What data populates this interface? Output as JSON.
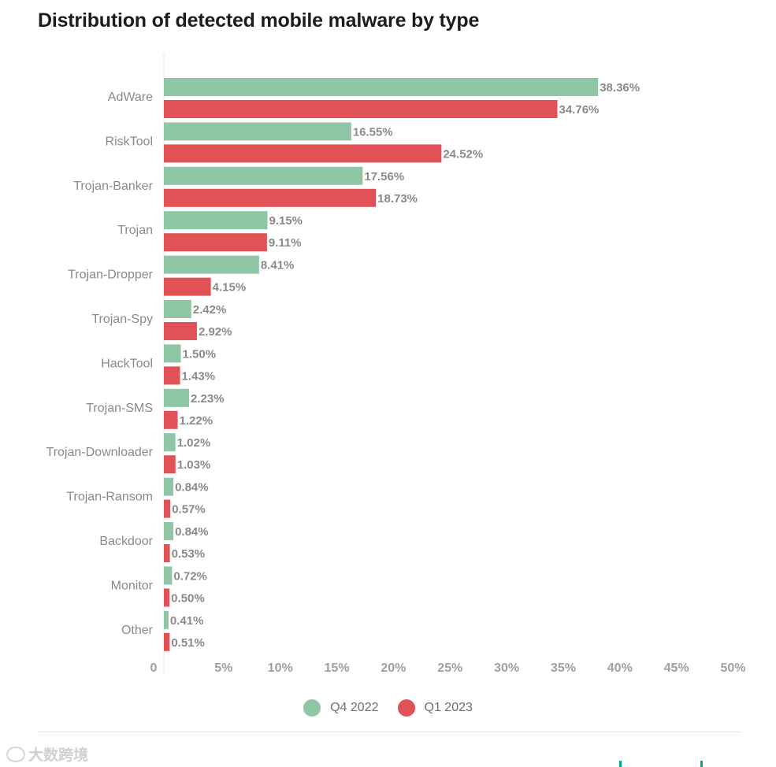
{
  "title": "Distribution of detected mobile malware by type",
  "colors": {
    "q4": "#8fc6a6",
    "q1": "#e05256",
    "label": "#8a8a8a",
    "axis": "#e3e3e3"
  },
  "legend": [
    {
      "label": "Q4 2022",
      "color": "#8fc6a6"
    },
    {
      "label": "Q1 2023",
      "color": "#e05256"
    }
  ],
  "watermark": "大数跨境",
  "chart_data": {
    "type": "bar",
    "orientation": "horizontal",
    "title": "Distribution of detected mobile malware by type",
    "xlabel": "",
    "ylabel": "",
    "xlim": [
      0,
      50
    ],
    "x_ticks": [
      "0",
      "5%",
      "10%",
      "15%",
      "20%",
      "25%",
      "30%",
      "35%",
      "40%",
      "45%",
      "50%"
    ],
    "categories": [
      "AdWare",
      "RiskTool",
      "Trojan-Banker",
      "Trojan",
      "Trojan-Dropper",
      "Trojan-Spy",
      "HackTool",
      "Trojan-SMS",
      "Trojan-Downloader",
      "Trojan-Ransom",
      "Backdoor",
      "Monitor",
      "Other"
    ],
    "series": [
      {
        "name": "Q4 2022",
        "values": [
          38.36,
          16.55,
          17.56,
          9.15,
          8.41,
          2.42,
          1.5,
          2.23,
          1.02,
          0.84,
          0.84,
          0.72,
          0.41
        ],
        "labels": [
          "38.36%",
          "16.55%",
          "17.56%",
          "9.15%",
          "8.41%",
          "2.42%",
          "1.50%",
          "2.23%",
          "1.02%",
          "0.84%",
          "0.84%",
          "0.72%",
          "0.41%"
        ]
      },
      {
        "name": "Q1 2023",
        "values": [
          34.76,
          24.52,
          18.73,
          9.11,
          4.15,
          2.92,
          1.43,
          1.22,
          1.03,
          0.57,
          0.53,
          0.5,
          0.51
        ],
        "labels": [
          "34.76%",
          "24.52%",
          "18.73%",
          "9.11%",
          "4.15%",
          "2.92%",
          "1.43%",
          "1.22%",
          "1.03%",
          "0.57%",
          "0.53%",
          "0.50%",
          "0.51%"
        ]
      }
    ],
    "legend_position": "bottom-center",
    "grid": false
  }
}
